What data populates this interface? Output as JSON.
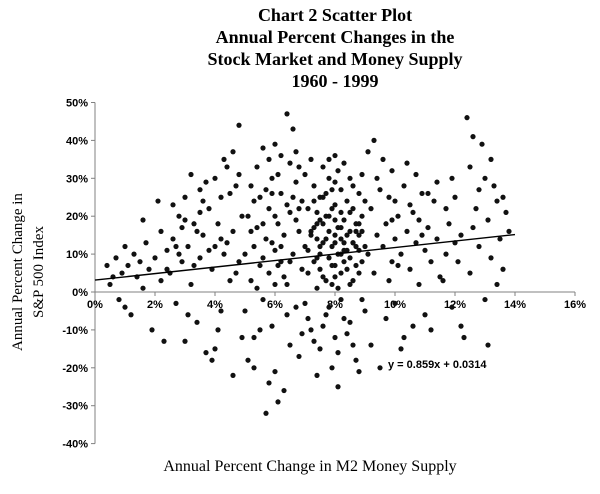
{
  "title": {
    "lines": [
      "Chart 2 Scatter Plot",
      "Annual Percent Changes in the",
      "Stock Market and Money Supply",
      "1960 - 1999"
    ]
  },
  "axes": {
    "x_label": "Annual Percent Change in M2 Money Supply",
    "y_label_line1": "Annual Percent Change in",
    "y_label_line2": "S&P 500 Index",
    "x_ticks": [
      "0%",
      "2%",
      "4%",
      "6%",
      "8%",
      "10%",
      "12%",
      "14%",
      "16%"
    ],
    "y_ticks": [
      "50%",
      "40%",
      "30%",
      "20%",
      "10%",
      "0%",
      "-10%",
      "-20%",
      "-30%",
      "-40%"
    ]
  },
  "colors": {
    "point": "#111111",
    "trendline": "#000000",
    "axis": "#808080",
    "tick_text": "#000000"
  },
  "chart_data": {
    "type": "scatter",
    "title": "Chart 2 Scatter Plot — Annual Percent Changes in the Stock Market and Money Supply 1960 - 1999",
    "xlabel": "Annual Percent Change in M2 Money Supply",
    "ylabel": "Annual Percent Change in S&P 500 Index",
    "xlim": [
      0,
      16
    ],
    "ylim": [
      -40,
      50
    ],
    "x_tick_values": [
      0,
      2,
      4,
      6,
      8,
      10,
      12,
      14,
      16
    ],
    "y_tick_values": [
      50,
      40,
      30,
      20,
      10,
      0,
      -10,
      -20,
      -30,
      -40
    ],
    "grid": false,
    "trendline": {
      "slope": 0.859,
      "intercept": 0.0314,
      "equation": "y = 0.859x + 0.0314",
      "x_range_percent": [
        0,
        14
      ]
    },
    "points_percent": [
      [
        0.4,
        7
      ],
      [
        0.5,
        2
      ],
      [
        0.6,
        4
      ],
      [
        0.7,
        9
      ],
      [
        0.8,
        -2
      ],
      [
        0.9,
        5
      ],
      [
        1.0,
        12
      ],
      [
        1.0,
        -4
      ],
      [
        1.1,
        7
      ],
      [
        1.2,
        -6
      ],
      [
        1.3,
        10
      ],
      [
        1.4,
        4
      ],
      [
        1.5,
        8
      ],
      [
        1.6,
        1
      ],
      [
        1.6,
        19
      ],
      [
        1.7,
        13
      ],
      [
        1.8,
        6
      ],
      [
        1.9,
        -10
      ],
      [
        2.0,
        9
      ],
      [
        2.1,
        24
      ],
      [
        2.2,
        3
      ],
      [
        2.2,
        16
      ],
      [
        2.3,
        -13
      ],
      [
        2.4,
        11
      ],
      [
        2.4,
        6
      ],
      [
        2.5,
        5
      ],
      [
        2.6,
        14
      ],
      [
        2.6,
        23
      ],
      [
        2.7,
        -3
      ],
      [
        2.7,
        12
      ],
      [
        2.8,
        20
      ],
      [
        2.8,
        10
      ],
      [
        2.9,
        8
      ],
      [
        2.9,
        17
      ],
      [
        3.0,
        -13
      ],
      [
        3.0,
        25
      ],
      [
        3.0,
        19
      ],
      [
        3.1,
        12
      ],
      [
        3.1,
        -6
      ],
      [
        3.2,
        2
      ],
      [
        3.2,
        31
      ],
      [
        3.3,
        18
      ],
      [
        3.3,
        7
      ],
      [
        3.4,
        -8
      ],
      [
        3.4,
        16
      ],
      [
        3.5,
        27
      ],
      [
        3.5,
        9
      ],
      [
        3.5,
        21
      ],
      [
        3.6,
        15
      ],
      [
        3.6,
        24
      ],
      [
        3.7,
        -16
      ],
      [
        3.7,
        29
      ],
      [
        3.8,
        22
      ],
      [
        3.8,
        11
      ],
      [
        3.9,
        -18
      ],
      [
        3.9,
        6
      ],
      [
        4.0,
        30
      ],
      [
        4.0,
        12
      ],
      [
        4.0,
        -15
      ],
      [
        4.1,
        18
      ],
      [
        4.1,
        -10
      ],
      [
        4.2,
        -5
      ],
      [
        4.2,
        25
      ],
      [
        4.2,
        14
      ],
      [
        4.3,
        10
      ],
      [
        4.3,
        35
      ],
      [
        4.4,
        33
      ],
      [
        4.4,
        13
      ],
      [
        4.5,
        3
      ],
      [
        4.5,
        26
      ],
      [
        4.6,
        -22
      ],
      [
        4.6,
        16
      ],
      [
        4.6,
        37
      ],
      [
        4.7,
        28
      ],
      [
        4.7,
        5
      ],
      [
        4.8,
        44
      ],
      [
        4.8,
        8
      ],
      [
        4.8,
        31
      ],
      [
        4.9,
        20
      ],
      [
        4.9,
        -12
      ],
      [
        5.0,
        10
      ],
      [
        5.0,
        -5
      ],
      [
        5.1,
        20
      ],
      [
        5.1,
        -18
      ],
      [
        5.2,
        3
      ],
      [
        5.2,
        28
      ],
      [
        5.2,
        16
      ],
      [
        5.3,
        12
      ],
      [
        5.3,
        -12
      ],
      [
        5.3,
        24
      ],
      [
        5.3,
        -20
      ],
      [
        5.4,
        17
      ],
      [
        5.4,
        33
      ],
      [
        5.4,
        1
      ],
      [
        5.5,
        7
      ],
      [
        5.5,
        25
      ],
      [
        5.5,
        -10
      ],
      [
        5.6,
        38
      ],
      [
        5.6,
        -2
      ],
      [
        5.6,
        9
      ],
      [
        5.6,
        18
      ],
      [
        5.7,
        -32
      ],
      [
        5.7,
        14
      ],
      [
        5.7,
        27
      ],
      [
        5.8,
        22
      ],
      [
        5.8,
        5
      ],
      [
        5.8,
        -24
      ],
      [
        5.8,
        35
      ],
      [
        5.9,
        30
      ],
      [
        5.9,
        -9
      ],
      [
        5.9,
        13
      ],
      [
        5.9,
        26
      ],
      [
        6.0,
        39
      ],
      [
        6.0,
        11
      ],
      [
        6.0,
        -21
      ],
      [
        6.0,
        20
      ],
      [
        6.0,
        2
      ],
      [
        6.1,
        -29
      ],
      [
        6.1,
        18
      ],
      [
        6.1,
        31
      ],
      [
        6.1,
        7
      ],
      [
        6.2,
        8
      ],
      [
        6.2,
        26
      ],
      [
        6.2,
        36
      ],
      [
        6.2,
        12
      ],
      [
        6.3,
        -26
      ],
      [
        6.3,
        15
      ],
      [
        6.3,
        4
      ],
      [
        6.4,
        47
      ],
      [
        6.4,
        2
      ],
      [
        6.4,
        23
      ],
      [
        6.4,
        -6
      ],
      [
        6.5,
        21
      ],
      [
        6.5,
        -14
      ],
      [
        6.5,
        34
      ],
      [
        6.5,
        8
      ],
      [
        6.6,
        43
      ],
      [
        6.6,
        10
      ],
      [
        6.6,
        25
      ],
      [
        6.7,
        29
      ],
      [
        6.7,
        -4
      ],
      [
        6.7,
        19
      ],
      [
        6.7,
        37
      ],
      [
        6.8,
        -17
      ],
      [
        6.8,
        16
      ],
      [
        6.8,
        33
      ],
      [
        6.8,
        22
      ],
      [
        6.9,
        24
      ],
      [
        6.9,
        6
      ],
      [
        6.9,
        -11
      ],
      [
        7.0,
        12
      ],
      [
        7.0,
        -3
      ],
      [
        7.0,
        31
      ],
      [
        7.1,
        22
      ],
      [
        7.1,
        5
      ],
      [
        7.1,
        11
      ],
      [
        7.1,
        -7
      ],
      [
        7.2,
        15
      ],
      [
        7.2,
        -10
      ],
      [
        7.2,
        35
      ],
      [
        7.2,
        16
      ],
      [
        7.3,
        8
      ],
      [
        7.3,
        28
      ],
      [
        7.3,
        17
      ],
      [
        7.3,
        -13
      ],
      [
        7.3,
        24
      ],
      [
        7.4,
        1
      ],
      [
        7.4,
        18
      ],
      [
        7.4,
        -22
      ],
      [
        7.4,
        9
      ],
      [
        7.4,
        14
      ],
      [
        7.4,
        21
      ],
      [
        7.5,
        10
      ],
      [
        7.5,
        -15
      ],
      [
        7.5,
        25
      ],
      [
        7.5,
        19
      ],
      [
        7.5,
        6
      ],
      [
        7.5,
        12
      ],
      [
        7.6,
        13
      ],
      [
        7.6,
        4
      ],
      [
        7.6,
        33
      ],
      [
        7.6,
        25
      ],
      [
        7.6,
        -9
      ],
      [
        7.6,
        18
      ],
      [
        7.7,
        20
      ],
      [
        7.7,
        -6
      ],
      [
        7.7,
        14
      ],
      [
        7.7,
        26
      ],
      [
        7.7,
        3
      ],
      [
        7.8,
        9
      ],
      [
        7.8,
        16
      ],
      [
        7.8,
        30
      ],
      [
        7.8,
        -4
      ],
      [
        7.8,
        35
      ],
      [
        7.8,
        20
      ],
      [
        7.9,
        2
      ],
      [
        7.9,
        12
      ],
      [
        7.9,
        -20
      ],
      [
        7.9,
        22
      ],
      [
        7.9,
        7
      ],
      [
        7.9,
        27
      ],
      [
        8.0,
        23
      ],
      [
        8.0,
        7
      ],
      [
        8.0,
        -12
      ],
      [
        8.0,
        36
      ],
      [
        8.0,
        13
      ],
      [
        8.0,
        19
      ],
      [
        8.0,
        29
      ],
      [
        8.0,
        4
      ],
      [
        8.0,
        15
      ],
      [
        8.1,
        17
      ],
      [
        8.1,
        10
      ],
      [
        8.1,
        32
      ],
      [
        8.1,
        1
      ],
      [
        8.1,
        -16
      ],
      [
        8.1,
        -25
      ],
      [
        8.2,
        14
      ],
      [
        8.2,
        -2
      ],
      [
        8.2,
        27
      ],
      [
        8.2,
        5
      ],
      [
        8.2,
        21
      ],
      [
        8.2,
        17
      ],
      [
        8.2,
        10
      ],
      [
        8.3,
        11
      ],
      [
        8.3,
        19
      ],
      [
        8.3,
        34
      ],
      [
        8.3,
        -7
      ],
      [
        8.3,
        13
      ],
      [
        8.3,
        8
      ],
      [
        8.4,
        6
      ],
      [
        8.4,
        15
      ],
      [
        8.4,
        24
      ],
      [
        8.4,
        -11
      ],
      [
        8.4,
        11
      ],
      [
        8.5,
        9
      ],
      [
        8.5,
        -8
      ],
      [
        8.5,
        21
      ],
      [
        8.5,
        16
      ],
      [
        8.5,
        2
      ],
      [
        8.5,
        30
      ],
      [
        8.6,
        13
      ],
      [
        8.6,
        3
      ],
      [
        8.6,
        -14
      ],
      [
        8.6,
        28
      ],
      [
        8.6,
        22
      ],
      [
        8.6,
        13
      ],
      [
        8.7,
        18
      ],
      [
        8.7,
        -18
      ],
      [
        8.7,
        7
      ],
      [
        8.7,
        12
      ],
      [
        8.7,
        16
      ],
      [
        8.8,
        11
      ],
      [
        8.8,
        26
      ],
      [
        8.8,
        -21
      ],
      [
        8.8,
        15
      ],
      [
        8.8,
        5
      ],
      [
        8.8,
        18
      ],
      [
        8.9,
        8
      ],
      [
        8.9,
        16
      ],
      [
        8.9,
        20
      ],
      [
        8.9,
        31
      ],
      [
        8.9,
        -2
      ],
      [
        9.0,
        12
      ],
      [
        9.0,
        -5
      ],
      [
        9.0,
        24
      ],
      [
        9.1,
        37
      ],
      [
        9.1,
        10
      ],
      [
        9.2,
        22
      ],
      [
        9.2,
        -14
      ],
      [
        9.3,
        40
      ],
      [
        9.3,
        5
      ],
      [
        9.4,
        15
      ],
      [
        9.4,
        30
      ],
      [
        9.5,
        -20
      ],
      [
        9.5,
        27
      ],
      [
        9.6,
        12
      ],
      [
        9.6,
        35
      ],
      [
        9.7,
        18
      ],
      [
        9.7,
        -7
      ],
      [
        9.8,
        25
      ],
      [
        9.8,
        3
      ],
      [
        9.9,
        8
      ],
      [
        9.9,
        32
      ],
      [
        9.9,
        19
      ],
      [
        10.0,
        14
      ],
      [
        10.0,
        -3
      ],
      [
        10.0,
        24
      ],
      [
        10.1,
        20
      ],
      [
        10.1,
        7
      ],
      [
        10.2,
        -15
      ],
      [
        10.2,
        10
      ],
      [
        10.3,
        28
      ],
      [
        10.3,
        -12
      ],
      [
        10.4,
        16
      ],
      [
        10.4,
        34
      ],
      [
        10.5,
        6
      ],
      [
        10.5,
        23
      ],
      [
        10.6,
        -9
      ],
      [
        10.6,
        21
      ],
      [
        10.7,
        13
      ],
      [
        10.7,
        31
      ],
      [
        10.8,
        19
      ],
      [
        10.8,
        2
      ],
      [
        10.9,
        26
      ],
      [
        10.9,
        15
      ],
      [
        11.0,
        11
      ],
      [
        11.0,
        -6
      ],
      [
        11.1,
        17
      ],
      [
        11.1,
        26
      ],
      [
        11.2,
        8
      ],
      [
        11.2,
        -10
      ],
      [
        11.3,
        24
      ],
      [
        11.4,
        14
      ],
      [
        11.4,
        29
      ],
      [
        11.5,
        4
      ],
      [
        11.6,
        3
      ],
      [
        11.7,
        10
      ],
      [
        11.7,
        22
      ],
      [
        11.8,
        18
      ],
      [
        11.9,
        -4
      ],
      [
        11.9,
        30
      ],
      [
        12.0,
        25
      ],
      [
        12.0,
        13
      ],
      [
        12.1,
        8
      ],
      [
        12.2,
        15
      ],
      [
        12.2,
        -9
      ],
      [
        12.3,
        -12
      ],
      [
        12.4,
        46
      ],
      [
        12.5,
        33
      ],
      [
        12.5,
        5
      ],
      [
        12.6,
        41
      ],
      [
        12.6,
        17
      ],
      [
        12.7,
        22
      ],
      [
        12.8,
        12
      ],
      [
        12.8,
        27
      ],
      [
        12.9,
        39
      ],
      [
        13.0,
        30
      ],
      [
        13.0,
        -2
      ],
      [
        13.1,
        19
      ],
      [
        13.1,
        -14
      ],
      [
        13.2,
        35
      ],
      [
        13.2,
        9
      ],
      [
        13.3,
        28
      ],
      [
        13.4,
        24
      ],
      [
        13.4,
        2
      ],
      [
        13.5,
        14
      ],
      [
        13.6,
        6
      ],
      [
        13.6,
        25
      ],
      [
        13.7,
        21
      ],
      [
        13.8,
        16
      ]
    ]
  }
}
